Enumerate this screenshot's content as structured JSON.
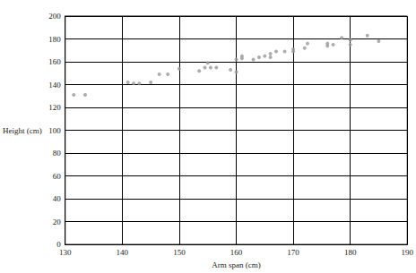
{
  "chart_data": {
    "type": "scatter",
    "x_label": "Arm span (cm)",
    "y_label": "Height (cm)",
    "x": [
      131.5,
      133.5,
      141,
      142,
      143,
      145,
      146.5,
      148,
      150,
      153.5,
      154.5,
      155,
      155.5,
      156.5,
      159,
      160,
      160,
      161,
      161,
      163,
      164,
      165,
      166,
      166,
      167,
      168.5,
      170,
      170,
      172,
      172.5,
      176,
      176,
      177,
      178.5,
      180,
      180,
      183,
      185
    ],
    "values": [
      131,
      131,
      142,
      141,
      141,
      142,
      149,
      149,
      154,
      152,
      155,
      159,
      155,
      155,
      153,
      162,
      151,
      163,
      165,
      162,
      164,
      165,
      164,
      167,
      169,
      169,
      169,
      171,
      172,
      176,
      176,
      174,
      175,
      181,
      179,
      175,
      183,
      178
    ],
    "color": "#999999",
    "marker": "circle",
    "xlim": [
      130,
      190
    ],
    "xticks": [
      130,
      140,
      150,
      160,
      170,
      180,
      190
    ],
    "ylim": [
      0,
      200
    ],
    "yticks": [
      0,
      20,
      40,
      60,
      80,
      100,
      120,
      140,
      160,
      180,
      200
    ],
    "grid": true
  }
}
